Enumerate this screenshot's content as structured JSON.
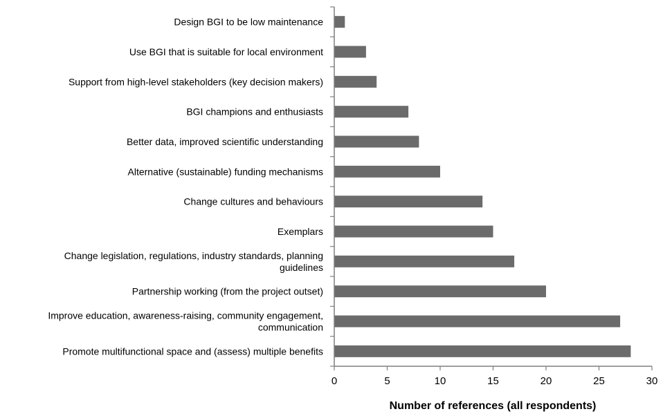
{
  "chart_data": {
    "type": "bar",
    "orientation": "horizontal",
    "categories": [
      "Design BGI to be low maintenance",
      "Use BGI that is suitable for local environment",
      "Support from high-level stakeholders (key decision makers)",
      "BGI champions and enthusiasts",
      "Better data, improved scientific understanding",
      "Alternative (sustainable) funding mechanisms",
      "Change cultures and behaviours",
      "Exemplars",
      "Change legislation, regulations, industry standards, planning guidelines",
      "Partnership working (from the project outset)",
      "Improve education, awareness-raising, community engagement, communication",
      "Promote multifunctional space and (assess) multiple benefits"
    ],
    "category_lines": [
      [
        "Design BGI to be low maintenance"
      ],
      [
        "Use BGI that is suitable for local environment"
      ],
      [
        "Support from high-level stakeholders (key decision makers)"
      ],
      [
        "BGI champions and enthusiasts"
      ],
      [
        "Better data, improved scientific understanding"
      ],
      [
        "Alternative (sustainable) funding mechanisms"
      ],
      [
        "Change cultures and behaviours"
      ],
      [
        "Exemplars"
      ],
      [
        "Change legislation, regulations, industry standards, planning",
        "guidelines"
      ],
      [
        "Partnership working (from the project outset)"
      ],
      [
        "Improve education, awareness-raising, community engagement,",
        "communication"
      ],
      [
        "Promote multifunctional space and (assess) multiple benefits"
      ]
    ],
    "values": [
      1,
      3,
      4,
      7,
      8,
      10,
      14,
      15,
      17,
      20,
      27,
      28
    ],
    "xlim": [
      0,
      30
    ],
    "xticks": [
      0,
      5,
      10,
      15,
      20,
      25,
      30
    ],
    "xtick_labels": [
      "0",
      "5",
      "10",
      "15",
      "20",
      "25",
      "30"
    ],
    "xlabel": "Number of references (all respondents)",
    "ylabel": "",
    "title": "",
    "grid": false,
    "legend": false,
    "bar_color": "#6b6b6b",
    "axis_color": "#7f7f7f"
  }
}
